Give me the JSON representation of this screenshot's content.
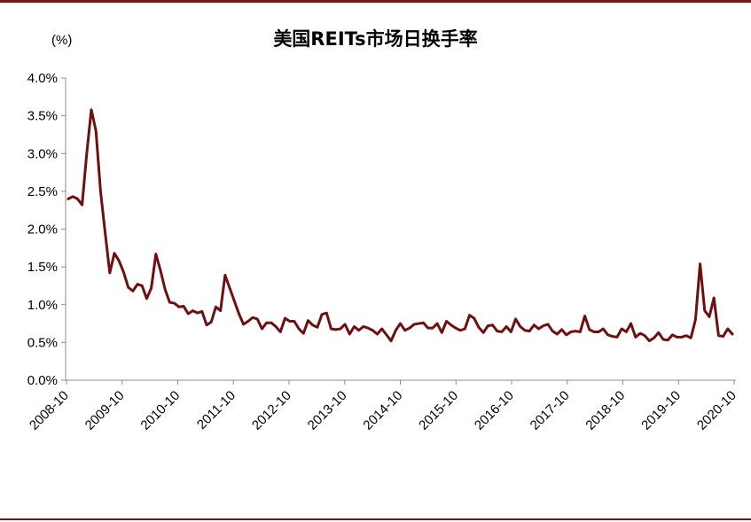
{
  "colors": {
    "frame": "#7a1416",
    "series": "#6e0f10",
    "axis": "#8c8c8c"
  },
  "chart_data": {
    "type": "line",
    "title": "美国REITs市场日换手率",
    "unit_label": "(%)",
    "ylim": [
      0,
      0.04
    ],
    "y_ticks": [
      {
        "value": 0.0,
        "label": "0.0%"
      },
      {
        "value": 0.005,
        "label": "0.5%"
      },
      {
        "value": 0.01,
        "label": "1.0%"
      },
      {
        "value": 0.015,
        "label": "1.5%"
      },
      {
        "value": 0.02,
        "label": "2.0%"
      },
      {
        "value": 0.025,
        "label": "2.5%"
      },
      {
        "value": 0.03,
        "label": "3.0%"
      },
      {
        "value": 0.035,
        "label": "3.5%"
      },
      {
        "value": 0.04,
        "label": "4.0%"
      }
    ],
    "x_ticks": [
      "2008-10",
      "2009-10",
      "2010-10",
      "2011-10",
      "2012-10",
      "2013-10",
      "2014-10",
      "2015-10",
      "2016-10",
      "2017-10",
      "2018-10",
      "2019-10",
      "2020-10"
    ],
    "x_start": "2008-10",
    "x_end": "2020-10",
    "grid": false,
    "legend": "none",
    "series": [
      {
        "values": [
          0.024,
          0.0243,
          0.024,
          0.0232,
          0.03,
          0.0358,
          0.033,
          0.025,
          0.0195,
          0.0142,
          0.0168,
          0.0158,
          0.0143,
          0.0123,
          0.0118,
          0.0127,
          0.0125,
          0.0108,
          0.0122,
          0.0167,
          0.0145,
          0.012,
          0.0103,
          0.0102,
          0.0097,
          0.0098,
          0.0088,
          0.0092,
          0.0089,
          0.0091,
          0.0073,
          0.0077,
          0.0097,
          0.0092,
          0.0139,
          0.0122,
          0.0105,
          0.0088,
          0.0074,
          0.0078,
          0.0083,
          0.0081,
          0.0068,
          0.0076,
          0.0076,
          0.0071,
          0.0064,
          0.0082,
          0.0078,
          0.0078,
          0.0068,
          0.0062,
          0.0079,
          0.0073,
          0.007,
          0.0087,
          0.0089,
          0.0068,
          0.0067,
          0.0068,
          0.0074,
          0.0061,
          0.0071,
          0.0066,
          0.0071,
          0.0069,
          0.0066,
          0.0061,
          0.0068,
          0.006,
          0.0052,
          0.0066,
          0.0075,
          0.0066,
          0.0069,
          0.0074,
          0.0075,
          0.0076,
          0.0069,
          0.0069,
          0.0075,
          0.0063,
          0.0078,
          0.0073,
          0.0069,
          0.0066,
          0.0068,
          0.0086,
          0.0082,
          0.007,
          0.0063,
          0.0072,
          0.0073,
          0.0065,
          0.0064,
          0.0071,
          0.0064,
          0.0081,
          0.0071,
          0.0066,
          0.0065,
          0.0073,
          0.0068,
          0.0072,
          0.0074,
          0.0065,
          0.0061,
          0.0067,
          0.006,
          0.0064,
          0.0065,
          0.0064,
          0.0085,
          0.0067,
          0.0064,
          0.0064,
          0.0068,
          0.006,
          0.0058,
          0.0057,
          0.0068,
          0.0064,
          0.0075,
          0.0057,
          0.0062,
          0.0059,
          0.0052,
          0.0056,
          0.0063,
          0.0054,
          0.0053,
          0.006,
          0.0057,
          0.0057,
          0.0059,
          0.0056,
          0.008,
          0.0154,
          0.0092,
          0.0084,
          0.0109,
          0.0059,
          0.0058,
          0.0068,
          0.0061
        ]
      }
    ]
  }
}
